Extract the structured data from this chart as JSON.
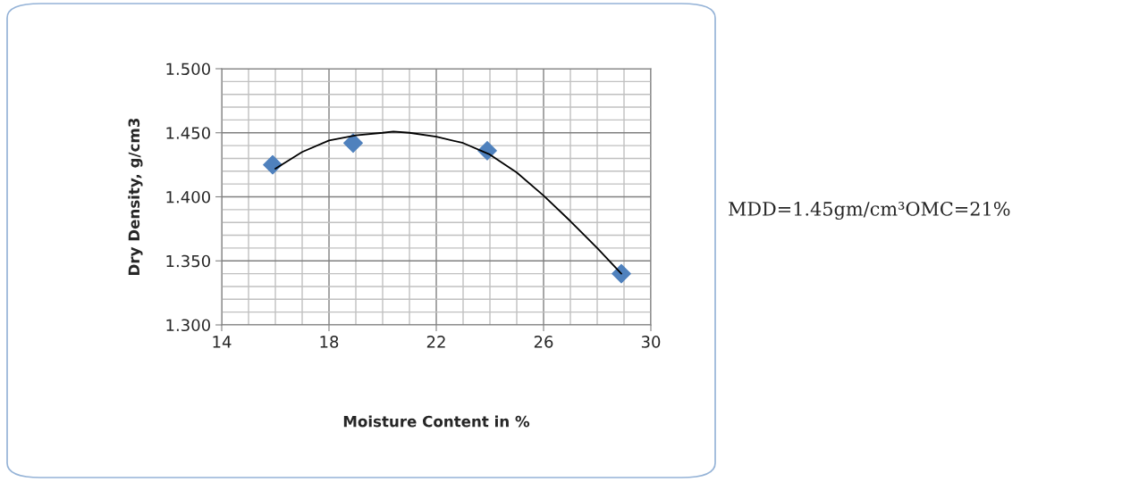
{
  "chart_data": {
    "type": "scatter",
    "xlabel": "Moisture Content in %",
    "ylabel": "Dry Density, g/cm3",
    "x": [
      15.9,
      18.9,
      23.9,
      28.9
    ],
    "series": [
      {
        "color": "#4f81bd",
        "marker": "diamond",
        "values": [
          1.425,
          1.442,
          1.436,
          1.34
        ]
      },
      {
        "type": "line",
        "color": "#000000",
        "marker": "none",
        "x": [
          16,
          17,
          18,
          19,
          20,
          20.4,
          21,
          22,
          23,
          24,
          25,
          26,
          27,
          28,
          28.9
        ],
        "values": [
          1.422,
          1.435,
          1.444,
          1.448,
          1.45,
          1.451,
          1.45,
          1.447,
          1.442,
          1.433,
          1.419,
          1.401,
          1.381,
          1.36,
          1.34
        ]
      }
    ],
    "xlim": [
      14,
      30
    ],
    "xticks": [
      14,
      18,
      22,
      26,
      30
    ],
    "ylim": [
      1.3,
      1.5
    ],
    "yticks": [
      {
        "value": 1.3,
        "label": "1.300"
      },
      {
        "value": 1.35,
        "label": "1.350"
      },
      {
        "value": 1.4,
        "label": "1.400"
      },
      {
        "value": 1.45,
        "label": "1.450"
      },
      {
        "value": 1.5,
        "label": "1.500"
      }
    ],
    "grid": true,
    "legend": false,
    "annotations": [
      "MDD=1.45gm/cm³OMC=21%"
    ]
  }
}
